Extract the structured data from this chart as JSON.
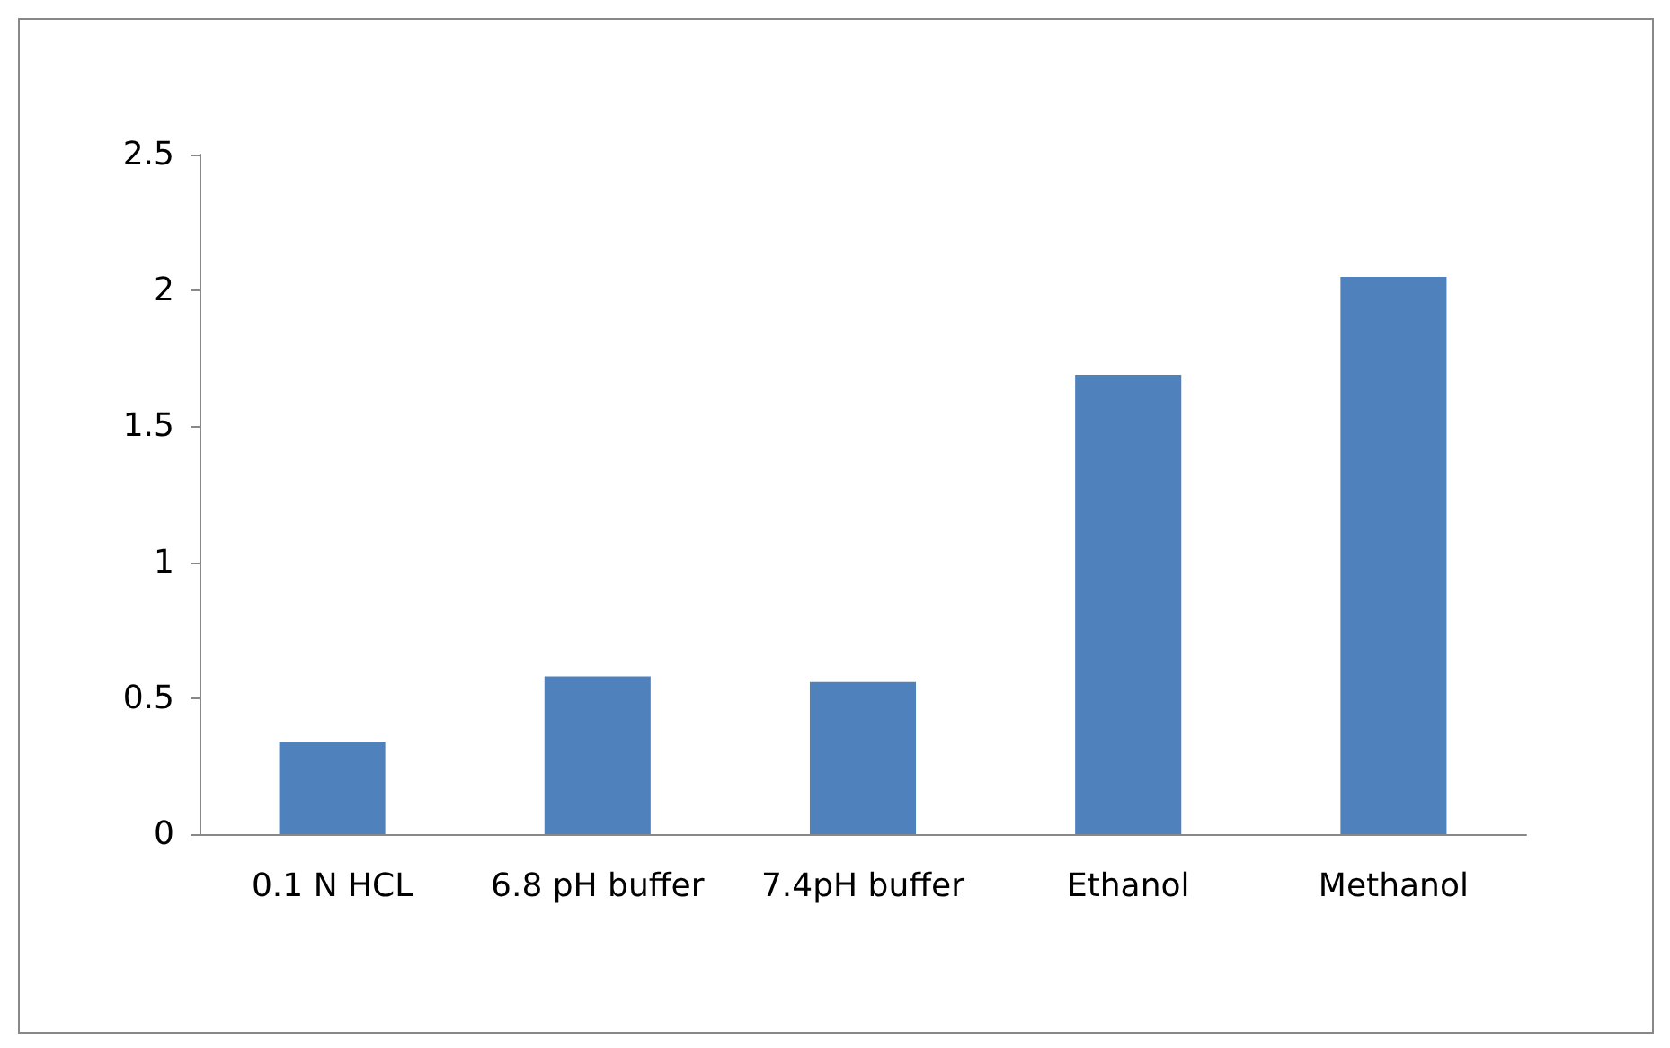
{
  "chart_data": {
    "type": "bar",
    "categories": [
      "0.1 N HCL",
      "6.8 pH buffer",
      "7.4pH buffer",
      "Ethanol",
      "Methanol"
    ],
    "values": [
      0.34,
      0.58,
      0.56,
      1.69,
      2.05
    ],
    "color": "#4f81bd",
    "ylim": [
      0,
      2.5
    ],
    "yticks": [
      0,
      0.5,
      1,
      1.5,
      2,
      2.5
    ],
    "grid": false
  }
}
